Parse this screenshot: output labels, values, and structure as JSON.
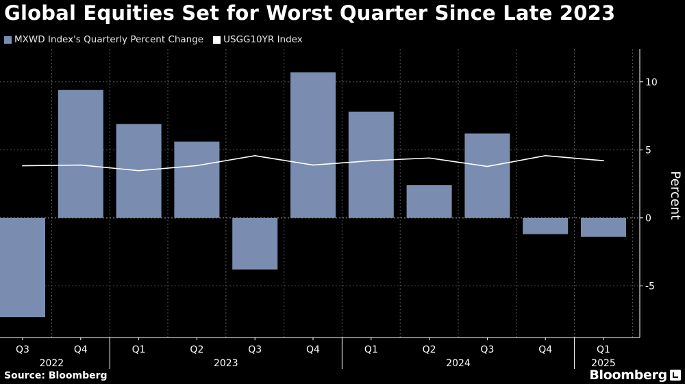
{
  "header": {
    "title": "Global Equities Set for Worst Quarter Since Late 2023"
  },
  "footer": {
    "source": "Source: Bloomberg",
    "brand": "Bloomberg"
  },
  "colors": {
    "bar": "#7a8db0",
    "line": "#ffffff",
    "grid": "#5a5a5a",
    "axis": "#ffffff",
    "text": "#ffffff"
  },
  "chart_data": {
    "type": "bar",
    "title": "Global Equities Set for Worst Quarter Since Late 2023",
    "categories": [
      "Q3",
      "Q4",
      "Q1",
      "Q2",
      "Q3",
      "Q4",
      "Q1",
      "Q2",
      "Q3",
      "Q4",
      "Q1"
    ],
    "years": [
      {
        "label": "2022",
        "start": 0,
        "end": 1
      },
      {
        "label": "2023",
        "start": 2,
        "end": 5
      },
      {
        "label": "2024",
        "start": 6,
        "end": 9
      },
      {
        "label": "2025",
        "start": 10,
        "end": 10
      }
    ],
    "series": [
      {
        "name": "MXWD Index's Quarterly Percent Change",
        "type": "bar",
        "values": [
          -7.3,
          9.4,
          6.9,
          5.6,
          -3.8,
          10.7,
          7.8,
          2.4,
          6.2,
          -1.2,
          -1.4
        ]
      },
      {
        "name": "USGG10YR Index",
        "type": "line",
        "values": [
          3.83,
          3.88,
          3.47,
          3.84,
          4.57,
          3.88,
          4.2,
          4.4,
          3.78,
          4.57,
          4.2
        ]
      }
    ],
    "ylabel": "Percent",
    "yticks": [
      -5,
      0,
      5,
      10
    ],
    "ylim": [
      -8.8,
      12.4
    ],
    "grid": true,
    "legend": "top-left"
  }
}
